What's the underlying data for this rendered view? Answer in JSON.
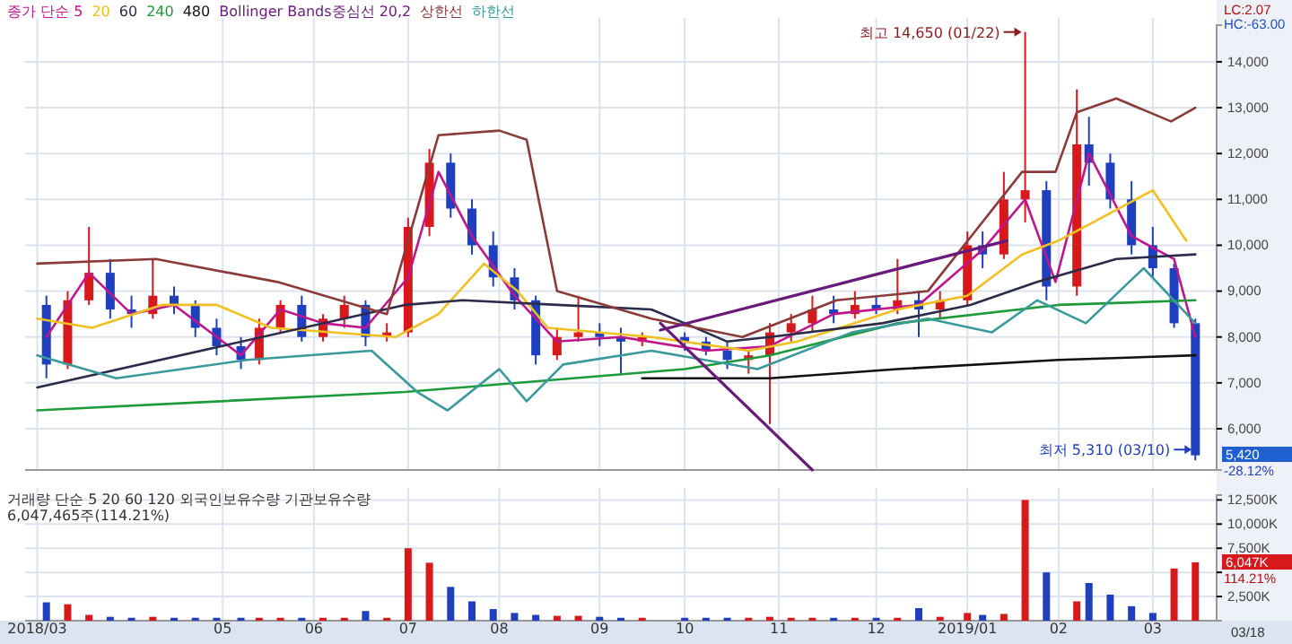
{
  "chart_data": [
    {
      "type": "candlestick",
      "legend": "top left",
      "grid": true,
      "tick_labels": "y",
      "xlim": [
        "2018-02-26",
        "2019-03-25"
      ],
      "xticks": [
        {
          "value": "2018-03-02",
          "label": null
        },
        {
          "value": "2018-05-02",
          "label": null
        },
        {
          "value": "2018-06-01",
          "label": null
        },
        {
          "value": "2018-07-02",
          "label": null
        },
        {
          "value": "2018-08-01",
          "label": null
        },
        {
          "value": "2018-09-03",
          "label": null
        },
        {
          "value": "2018-10-01",
          "label": null
        },
        {
          "value": "2018-11-01",
          "label": null
        },
        {
          "value": "2018-12-03",
          "label": null
        },
        {
          "value": "2019-01-02",
          "label": null
        },
        {
          "value": "2019-02-01",
          "label": null
        },
        {
          "value": "2019-03-04",
          "label": null
        }
      ],
      "ylim": [
        5100,
        14800
      ],
      "yticks": [
        {
          "value": 6000,
          "label": "6,000"
        },
        {
          "value": 7000,
          "label": "7,000"
        },
        {
          "value": 8000,
          "label": "8,000"
        },
        {
          "value": 9000,
          "label": "9,000"
        },
        {
          "value": 10000,
          "label": "10,000"
        },
        {
          "value": 11000,
          "label": "11,000"
        },
        {
          "value": 12000,
          "label": "12,000"
        },
        {
          "value": 13000,
          "label": "13,000"
        },
        {
          "value": 14000,
          "label": "14,000"
        }
      ],
      "x": [
        "2018-03-05",
        "2018-03-12",
        "2018-03-19",
        "2018-03-26",
        "2018-04-02",
        "2018-04-09",
        "2018-04-16",
        "2018-04-23",
        "2018-04-30",
        "2018-05-08",
        "2018-05-14",
        "2018-05-21",
        "2018-05-28",
        "2018-06-04",
        "2018-06-11",
        "2018-06-18",
        "2018-06-25",
        "2018-07-02",
        "2018-07-09",
        "2018-07-16",
        "2018-07-23",
        "2018-07-30",
        "2018-08-06",
        "2018-08-13",
        "2018-08-20",
        "2018-08-27",
        "2018-09-03",
        "2018-09-10",
        "2018-09-17",
        "2018-10-01",
        "2018-10-08",
        "2018-10-15",
        "2018-10-22",
        "2018-10-29",
        "2018-11-05",
        "2018-11-12",
        "2018-11-19",
        "2018-11-26",
        "2018-12-03",
        "2018-12-10",
        "2018-12-17",
        "2018-12-24",
        "2019-01-02",
        "2019-01-07",
        "2019-01-14",
        "2019-01-21",
        "2019-01-28",
        "2019-02-07",
        "2019-02-11",
        "2019-02-18",
        "2019-02-25",
        "2019-03-04",
        "2019-03-11",
        "2019-03-18"
      ],
      "ohlc": [
        [
          8700,
          8900,
          7100,
          7400
        ],
        [
          7400,
          9000,
          7300,
          8800
        ],
        [
          8800,
          10400,
          8700,
          9400
        ],
        [
          9400,
          9700,
          8400,
          8600
        ],
        [
          8600,
          8900,
          8200,
          8500
        ],
        [
          8500,
          9700,
          8400,
          8900
        ],
        [
          8900,
          9100,
          8500,
          8700
        ],
        [
          8700,
          8800,
          8000,
          8200
        ],
        [
          8200,
          8400,
          7600,
          7800
        ],
        [
          7800,
          8000,
          7300,
          7500
        ],
        [
          7500,
          8400,
          7400,
          8200
        ],
        [
          8200,
          8800,
          8100,
          8700
        ],
        [
          8700,
          8900,
          7900,
          8000
        ],
        [
          8000,
          8500,
          7900,
          8400
        ],
        [
          8400,
          8900,
          8200,
          8700
        ],
        [
          8700,
          8800,
          7800,
          8000
        ],
        [
          8000,
          8300,
          7900,
          8100
        ],
        [
          8100,
          10600,
          8000,
          10400
        ],
        [
          10400,
          12100,
          10200,
          11800
        ],
        [
          11800,
          12000,
          10600,
          10800
        ],
        [
          10800,
          11000,
          9800,
          10000
        ],
        [
          10000,
          10300,
          9100,
          9300
        ],
        [
          9300,
          9500,
          8600,
          8800
        ],
        [
          8800,
          8900,
          7400,
          7600
        ],
        [
          7600,
          8200,
          7500,
          8000
        ],
        [
          8000,
          8900,
          7900,
          8100
        ],
        [
          8100,
          8300,
          7800,
          8000
        ],
        [
          8000,
          8200,
          7200,
          7900
        ],
        [
          7900,
          8100,
          7800,
          8000
        ],
        [
          8000,
          8100,
          7700,
          7900
        ],
        [
          7900,
          8000,
          7600,
          7700
        ],
        [
          7700,
          7900,
          7300,
          7500
        ],
        [
          7500,
          7700,
          7200,
          7600
        ],
        [
          7600,
          8300,
          6100,
          8100
        ],
        [
          8100,
          8500,
          7900,
          8300
        ],
        [
          8300,
          8900,
          8100,
          8600
        ],
        [
          8600,
          8900,
          8300,
          8500
        ],
        [
          8500,
          9000,
          8400,
          8700
        ],
        [
          8700,
          8900,
          8500,
          8600
        ],
        [
          8600,
          9700,
          8500,
          8800
        ],
        [
          8800,
          9000,
          8000,
          8600
        ],
        [
          8600,
          9000,
          8400,
          8800
        ],
        [
          8800,
          10300,
          8700,
          10000
        ],
        [
          10000,
          10300,
          9500,
          9800
        ],
        [
          9800,
          11600,
          9700,
          11000
        ],
        [
          11000,
          14650,
          10500,
          11200
        ],
        [
          11200,
          11400,
          8800,
          9100
        ],
        [
          9100,
          13400,
          8900,
          12200
        ],
        [
          12200,
          12800,
          11300,
          11800
        ],
        [
          11800,
          12000,
          10800,
          11000
        ],
        [
          11000,
          11400,
          9800,
          10000
        ],
        [
          10000,
          10400,
          9300,
          9500
        ],
        [
          9500,
          9600,
          8200,
          8300
        ],
        [
          8300,
          8400,
          5310,
          5420
        ]
      ],
      "series": [
        {
          "type": "line",
          "name": "종가 단순 5",
          "color": "#c0168c",
          "x": [
            "2018-03-05",
            "2018-03-19",
            "2018-04-02",
            "2018-04-16",
            "2018-05-08",
            "2018-05-21",
            "2018-06-04",
            "2018-06-18",
            "2018-07-02",
            "2018-07-12",
            "2018-07-23",
            "2018-08-06",
            "2018-08-20",
            "2018-09-10",
            "2018-10-08",
            "2018-10-29",
            "2018-11-19",
            "2018-12-17",
            "2019-01-07",
            "2019-01-21",
            "2019-01-31",
            "2019-02-11",
            "2019-02-25",
            "2019-03-11",
            "2019-03-18"
          ],
          "values": [
            8000,
            9400,
            8500,
            8700,
            7600,
            8600,
            8300,
            8200,
            9300,
            11600,
            10200,
            8900,
            7900,
            8000,
            7700,
            7800,
            8500,
            8700,
            9900,
            11000,
            9200,
            12000,
            10200,
            9700,
            8000
          ]
        },
        {
          "type": "line",
          "name": "20",
          "color": "#f0c020",
          "x": [
            "2018-03-02",
            "2018-03-20",
            "2018-04-12",
            "2018-04-30",
            "2018-05-18",
            "2018-06-28",
            "2018-07-12",
            "2018-07-27",
            "2018-08-07",
            "2018-08-17",
            "2018-09-20",
            "2018-10-22",
            "2018-11-07",
            "2018-12-10",
            "2019-01-02",
            "2019-01-20",
            "2019-02-01",
            "2019-02-18",
            "2019-03-04",
            "2019-03-15"
          ],
          "values": [
            8400,
            8200,
            8700,
            8700,
            8200,
            8000,
            8500,
            9600,
            9000,
            8200,
            8000,
            7700,
            7900,
            8600,
            8900,
            9800,
            10100,
            10700,
            11200,
            10100
          ]
        },
        {
          "type": "line",
          "name": "60",
          "color": "#2b2b4a",
          "x": [
            "2018-03-02",
            "2018-07-01",
            "2018-07-20",
            "2018-08-20",
            "2018-09-20",
            "2018-10-01",
            "2018-10-15",
            "2018-10-29",
            "2018-12-05",
            "2019-01-03",
            "2019-01-25",
            "2019-02-20",
            "2019-03-18"
          ],
          "values": [
            6900,
            8700,
            8800,
            8700,
            8600,
            8300,
            7900,
            8000,
            8300,
            8700,
            9200,
            9700,
            9800
          ]
        },
        {
          "type": "line",
          "name": "240",
          "color": "#1e9a3a",
          "x": [
            "2018-03-02",
            "2018-07-01",
            "2018-10-01",
            "2018-10-29",
            "2018-12-10",
            "2019-02-01",
            "2019-03-18"
          ],
          "values": [
            6400,
            6800,
            7300,
            7600,
            8300,
            8700,
            8800
          ]
        },
        {
          "type": "line",
          "name": "480",
          "color": "#111111",
          "x": [
            "2018-09-17",
            "2018-10-29",
            "2018-12-10",
            "2019-02-01",
            "2019-03-18"
          ],
          "values": [
            7100,
            7100,
            7300,
            7500,
            7600
          ]
        },
        {
          "type": "line",
          "name": "상한선",
          "color": "#8b3a3a",
          "x": [
            "2018-03-02",
            "2018-04-10",
            "2018-05-20",
            "2018-06-25",
            "2018-07-12",
            "2018-08-01",
            "2018-08-10",
            "2018-08-20",
            "2018-09-20",
            "2018-10-20",
            "2018-11-20",
            "2018-12-20",
            "2019-01-20",
            "2019-01-31",
            "2019-02-07",
            "2019-02-20",
            "2019-03-10",
            "2019-03-18"
          ],
          "values": [
            9600,
            9700,
            9200,
            8500,
            12400,
            12500,
            12300,
            9000,
            8400,
            8000,
            8800,
            9000,
            11600,
            11600,
            12900,
            13200,
            12700,
            13000
          ]
        },
        {
          "type": "line",
          "name": "하한선",
          "color": "#3a9a9a",
          "x": [
            "2018-03-02",
            "2018-03-28",
            "2018-05-10",
            "2018-06-20",
            "2018-07-05",
            "2018-07-15",
            "2018-08-01",
            "2018-08-10",
            "2018-08-22",
            "2018-09-20",
            "2018-10-25",
            "2018-11-25",
            "2018-12-20",
            "2019-01-10",
            "2019-01-25",
            "2019-02-10",
            "2019-03-01",
            "2019-03-18"
          ],
          "values": [
            7600,
            7100,
            7500,
            7700,
            6800,
            6400,
            7300,
            6600,
            7400,
            7700,
            7300,
            8100,
            8400,
            8100,
            8800,
            8300,
            9500,
            8300
          ]
        },
        {
          "type": "line",
          "color": "#6a1b7a",
          "x": [
            "2018-09-23",
            "2019-01-15"
          ],
          "values": [
            8150,
            10100
          ]
        },
        {
          "type": "line",
          "color": "#6a1b7a",
          "x": [
            "2018-09-23",
            "2018-11-12"
          ],
          "values": [
            8300,
            5100
          ]
        }
      ],
      "annotations": [
        "Bollinger Bands중심선 20,2",
        {
          "text": "최고 14,650 (01/22)",
          "x": "2019-01-21",
          "y": 14650
        },
        {
          "text": "최저 5,310 (03/10)",
          "x": "2019-03-18",
          "y": 5310
        },
        "LC:2.07",
        "HC:-63.00",
        "5,420",
        "-28.12%"
      ]
    },
    {
      "type": "bar",
      "grid": true,
      "xlim": [
        "2018-02-26",
        "2019-03-25"
      ],
      "xticks": [
        {
          "value": "2018-03-02",
          "label": "2018/03"
        },
        {
          "value": "2018-05-02",
          "label": "05"
        },
        {
          "value": "2018-06-01",
          "label": "06"
        },
        {
          "value": "2018-07-02",
          "label": "07"
        },
        {
          "value": "2018-08-01",
          "label": "08"
        },
        {
          "value": "2018-09-03",
          "label": "09"
        },
        {
          "value": "2018-10-01",
          "label": "10"
        },
        {
          "value": "2018-11-01",
          "label": "11"
        },
        {
          "value": "2018-12-03",
          "label": "12"
        },
        {
          "value": "2019-01-02",
          "label": "2019/01"
        },
        {
          "value": "2019-02-01",
          "label": "02"
        },
        {
          "value": "2019-03-04",
          "label": "03"
        }
      ],
      "ylim": [
        0,
        13000
      ],
      "yticks": [
        {
          "value": 2500,
          "label": "2,500K"
        },
        {
          "value": 5000,
          "label": null
        },
        {
          "value": 7500,
          "label": "7,500K"
        },
        {
          "value": 10000,
          "label": "10,000K"
        },
        {
          "value": 12500,
          "label": "12,500K"
        }
      ],
      "x": [
        "2018-03-05",
        "2018-03-12",
        "2018-03-19",
        "2018-03-26",
        "2018-04-02",
        "2018-04-09",
        "2018-04-16",
        "2018-04-23",
        "2018-04-30",
        "2018-05-08",
        "2018-05-14",
        "2018-05-21",
        "2018-05-28",
        "2018-06-04",
        "2018-06-11",
        "2018-06-18",
        "2018-06-25",
        "2018-07-02",
        "2018-07-09",
        "2018-07-16",
        "2018-07-23",
        "2018-07-30",
        "2018-08-06",
        "2018-08-13",
        "2018-08-20",
        "2018-08-27",
        "2018-09-03",
        "2018-09-10",
        "2018-09-17",
        "2018-10-01",
        "2018-10-08",
        "2018-10-15",
        "2018-10-22",
        "2018-10-29",
        "2018-11-05",
        "2018-11-12",
        "2018-11-19",
        "2018-11-26",
        "2018-12-03",
        "2018-12-10",
        "2018-12-17",
        "2018-12-24",
        "2019-01-02",
        "2019-01-07",
        "2019-01-14",
        "2019-01-21",
        "2019-01-28",
        "2019-02-07",
        "2019-02-11",
        "2019-02-18",
        "2019-02-25",
        "2019-03-04",
        "2019-03-11",
        "2019-03-18"
      ],
      "values": [
        1900,
        1700,
        600,
        400,
        300,
        400,
        300,
        300,
        300,
        300,
        300,
        300,
        300,
        300,
        300,
        1000,
        300,
        7500,
        6000,
        3500,
        2000,
        1200,
        800,
        600,
        500,
        500,
        400,
        300,
        300,
        300,
        300,
        300,
        300,
        400,
        300,
        300,
        300,
        300,
        300,
        300,
        1300,
        400,
        800,
        600,
        700,
        12500,
        5000,
        2000,
        3900,
        2700,
        1500,
        800,
        5400,
        6047
      ],
      "colors": [
        "#1f3fbf",
        "#d7191c",
        "#d7191c",
        "#1f3fbf",
        "#1f3fbf",
        "#d7191c",
        "#1f3fbf",
        "#1f3fbf",
        "#1f3fbf",
        "#1f3fbf",
        "#d7191c",
        "#d7191c",
        "#1f3fbf",
        "#d7191c",
        "#d7191c",
        "#1f3fbf",
        "#d7191c",
        "#d7191c",
        "#d7191c",
        "#1f3fbf",
        "#1f3fbf",
        "#1f3fbf",
        "#1f3fbf",
        "#1f3fbf",
        "#d7191c",
        "#d7191c",
        "#1f3fbf",
        "#1f3fbf",
        "#d7191c",
        "#1f3fbf",
        "#1f3fbf",
        "#1f3fbf",
        "#d7191c",
        "#d7191c",
        "#d7191c",
        "#d7191c",
        "#1f3fbf",
        "#d7191c",
        "#1f3fbf",
        "#d7191c",
        "#1f3fbf",
        "#d7191c",
        "#d7191c",
        "#1f3fbf",
        "#d7191c",
        "#d7191c",
        "#1f3fbf",
        "#d7191c",
        "#1f3fbf",
        "#1f3fbf",
        "#1f3fbf",
        "#1f3fbf",
        "#d7191c",
        "#d7191c"
      ],
      "annotations": [
        "거래량 단순 5 20 60 120 외국인보유수량 기관보유수량",
        "6,047,465주(114.21%)",
        "6,047K",
        "114.21%",
        "03/18"
      ]
    }
  ]
}
